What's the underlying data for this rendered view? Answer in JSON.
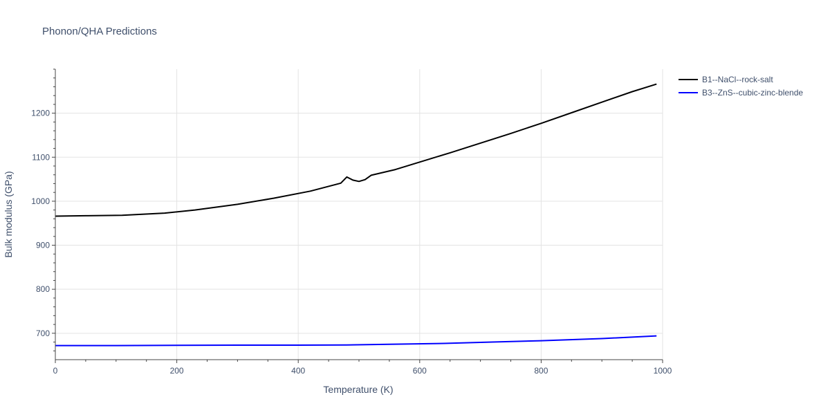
{
  "chart_data": {
    "type": "line",
    "title": "Phonon/QHA Predictions",
    "xlabel": "Temperature (K)",
    "ylabel": "Bulk modulus (GPa)",
    "xlim": [
      0,
      1000
    ],
    "ylim": [
      640,
      1300
    ],
    "xticks": [
      0,
      200,
      400,
      600,
      800,
      1000
    ],
    "yticks": [
      700,
      800,
      900,
      1000,
      1100,
      1200
    ],
    "grid": true,
    "legend_position": "top-right",
    "series": [
      {
        "name": "B1--NaCl--rock-salt",
        "color": "#000000",
        "x": [
          0,
          50,
          110,
          180,
          230,
          300,
          360,
          420,
          470,
          480,
          490,
          500,
          510,
          520,
          560,
          600,
          650,
          700,
          750,
          800,
          850,
          900,
          950,
          990
        ],
        "y": [
          966,
          967,
          968,
          973,
          980,
          993,
          1007,
          1023,
          1041,
          1055,
          1048,
          1045,
          1049,
          1059,
          1072,
          1089,
          1110,
          1132,
          1154,
          1177,
          1201,
          1225,
          1249,
          1266
        ]
      },
      {
        "name": "B3--ZnS--cubic-zinc-blende",
        "color": "#0000ff",
        "x": [
          0,
          100,
          200,
          300,
          400,
          480,
          550,
          640,
          720,
          800,
          900,
          990
        ],
        "y": [
          672,
          672,
          672.5,
          673,
          673,
          673.5,
          675,
          677,
          680,
          683,
          688,
          694
        ]
      }
    ]
  }
}
